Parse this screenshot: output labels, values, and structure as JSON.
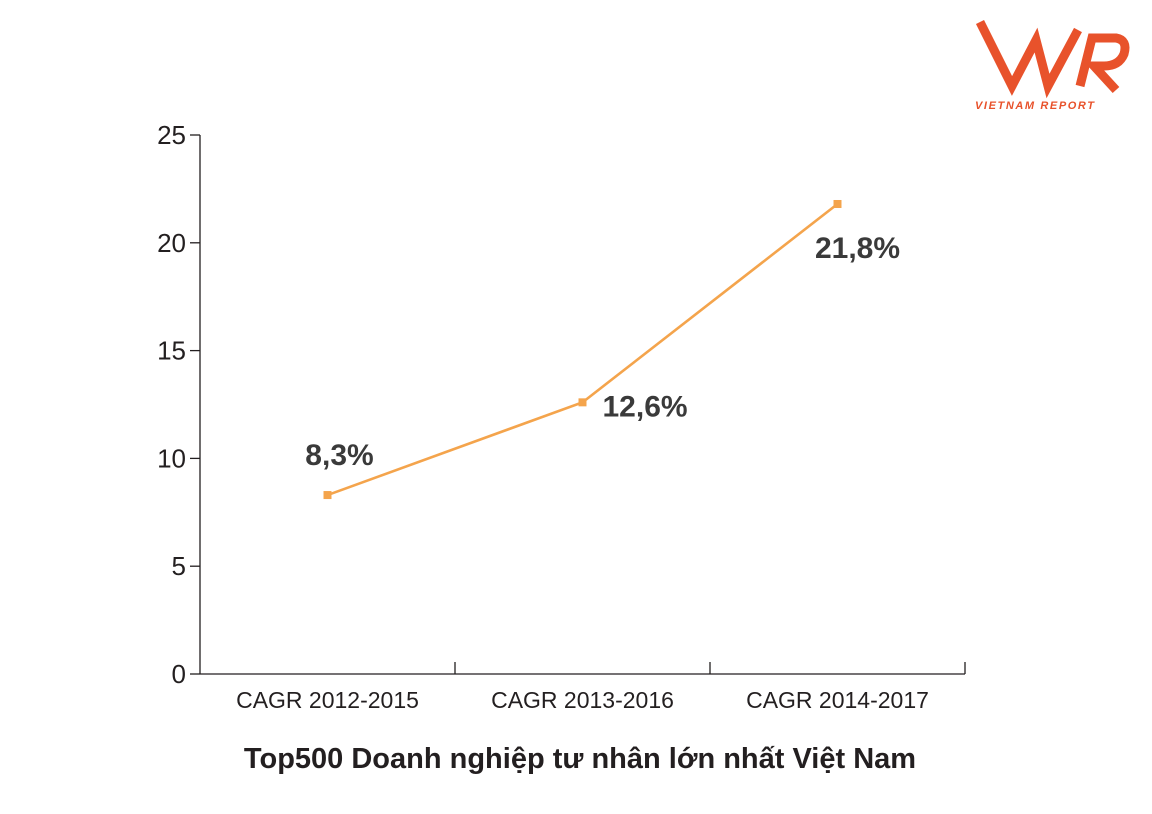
{
  "logo": {
    "caption": "VIETNAM REPORT",
    "color": "#e8522b"
  },
  "chart_data": {
    "type": "line",
    "categories": [
      "CAGR 2012-2015",
      "CAGR 2013-2016",
      "CAGR 2014-2017"
    ],
    "values": [
      8.3,
      12.6,
      21.8
    ],
    "data_labels": [
      "8,3%",
      "12,6%",
      "21,8%"
    ],
    "title": "",
    "xlabel": "Top500 Doanh nghiệp tư nhân lớn nhất Việt Nam",
    "ylabel": "",
    "ylim": [
      0,
      25
    ],
    "yticks": [
      0,
      5,
      10,
      15,
      20,
      25
    ],
    "grid": false,
    "line_color": "#f4a44c"
  }
}
